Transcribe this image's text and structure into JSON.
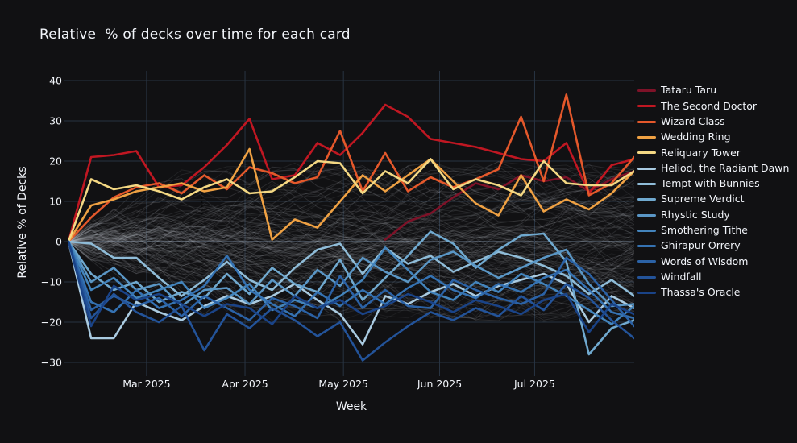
{
  "title": "Relative  % of decks over time for each card",
  "colors": {
    "paper_bg": "#111113",
    "plot_bg": "#111113",
    "grid": "#283442",
    "zero_line": "#4a5563",
    "axis_text": "#f2f5fa",
    "background_lines": "#b8bdc4"
  },
  "chart_data": {
    "type": "line",
    "title": "Relative  % of decks over time for each card",
    "xlabel": "Week",
    "ylabel": "Relative % of Decks",
    "x_is_weekly_index": true,
    "n_weeks": 26,
    "x_ticks": [
      {
        "label": "Mar 2025",
        "week": 3.45
      },
      {
        "label": "Apr 2025",
        "week": 7.8
      },
      {
        "label": "May 2025",
        "week": 12.15
      },
      {
        "label": "Jun 2025",
        "week": 16.4
      },
      {
        "label": "Jul 2025",
        "week": 20.6
      }
    ],
    "y_ticks": [
      40,
      30,
      20,
      10,
      0,
      -10,
      -20,
      -30
    ],
    "ylim": [
      -32.4,
      42.4
    ],
    "grid": true,
    "legend_position": "right",
    "series": [
      {
        "name": "Tataru Taru",
        "color": "#7e1228",
        "values": [
          null,
          null,
          null,
          null,
          null,
          null,
          null,
          null,
          null,
          null,
          null,
          null,
          null,
          null,
          0.5,
          5,
          7,
          11,
          14.5,
          13,
          16.5,
          15,
          16,
          12.5,
          15.5,
          17.5
        ]
      },
      {
        "name": "The Second Doctor",
        "color": "#c01722",
        "values": [
          0,
          21,
          21.5,
          22.5,
          13.5,
          14,
          18.5,
          24,
          30.5,
          15.5,
          16.5,
          24.5,
          21.5,
          27,
          34,
          31,
          25.5,
          24.5,
          23.5,
          22,
          20.5,
          20,
          24.5,
          12,
          19,
          20.5
        ]
      },
      {
        "name": "Wizard Class",
        "color": "#e4582b",
        "values": [
          0,
          6,
          11,
          13.5,
          14.5,
          12,
          16.5,
          13,
          18.5,
          17,
          14.5,
          16,
          27.5,
          12.5,
          22,
          12.5,
          16,
          13.5,
          15.5,
          18,
          31,
          15,
          36.5,
          11.5,
          14.5,
          21
        ]
      },
      {
        "name": "Wedding Ring",
        "color": "#efa143",
        "values": [
          0,
          9,
          10.5,
          12.5,
          13.5,
          14.5,
          12.5,
          13.5,
          23,
          0.5,
          5.5,
          3.5,
          10,
          16.5,
          12.5,
          16.5,
          20.5,
          15,
          9.5,
          6.5,
          16.5,
          7.5,
          10.5,
          8,
          12,
          17.5
        ]
      },
      {
        "name": "Reliquary Tower",
        "color": "#f4d883",
        "values": [
          0,
          15.5,
          13,
          14,
          12.5,
          10.5,
          13.5,
          15.5,
          12,
          12.5,
          16,
          20,
          19.5,
          12,
          17.5,
          14.5,
          20.5,
          13,
          15.5,
          14,
          11.5,
          20,
          14.5,
          14,
          14,
          17.5
        ]
      },
      {
        "name": "Heliod, the Radiant Dawn",
        "color": "#aacbe1",
        "values": [
          0,
          -24,
          -24,
          -15,
          -17.5,
          -19.5,
          -16,
          -13.5,
          -15.5,
          -13.5,
          -10.5,
          -14.5,
          -18,
          -25.5,
          -13.5,
          -15.5,
          -12.5,
          -10.5,
          -13.5,
          -11,
          -9.5,
          -8,
          -10.5,
          -20,
          -13.5,
          -16.5
        ]
      },
      {
        "name": "Tempt with Bunnies",
        "color": "#8fbcd8",
        "values": [
          0,
          -0.5,
          -4,
          -4,
          -9,
          -13.5,
          -9.5,
          -5,
          -9.5,
          -12,
          -6.5,
          -2,
          -0.5,
          -8,
          -1.5,
          -5.5,
          -3.5,
          -7.5,
          -5,
          -2.5,
          -4,
          -6,
          -8.5,
          -13,
          -9.5,
          -13.5
        ]
      },
      {
        "name": "Supreme Verdict",
        "color": "#70a9cf",
        "values": [
          0,
          -8,
          -12,
          -10,
          -15,
          -12.5,
          -14,
          -8,
          -13,
          -6.5,
          -10.5,
          -12.5,
          -4.5,
          -14.5,
          -9,
          -3.5,
          2.5,
          -0.5,
          -6.5,
          -2,
          1.5,
          2,
          -5,
          -28,
          -21.5,
          -19.5
        ]
      },
      {
        "name": "Rhystic Study",
        "color": "#5a96c5",
        "values": [
          0,
          -10,
          -6.5,
          -12,
          -10.5,
          -16,
          -12,
          -11.5,
          -15.5,
          -9.5,
          -13.5,
          -7,
          -11,
          -4,
          -7.5,
          -10,
          -4.5,
          -2.5,
          -6,
          -9,
          -6.5,
          -4,
          -2,
          -10.5,
          -16,
          -15.5
        ]
      },
      {
        "name": "Smothering Tithe",
        "color": "#4384bc",
        "values": [
          0,
          -12,
          -9,
          -14,
          -12,
          -10,
          -16.5,
          -14,
          -10.5,
          -17,
          -14.5,
          -16.5,
          -13.5,
          -9.5,
          -1.5,
          -7,
          -12.5,
          -14.5,
          -10,
          -12.5,
          -8,
          -10.5,
          -13.5,
          -17,
          -20.5,
          -16
        ]
      },
      {
        "name": "Ghirapur Orrery",
        "color": "#3572b2",
        "values": [
          0,
          -15,
          -17.5,
          -12,
          -16.5,
          -14.5,
          -11,
          -3.5,
          -12,
          -15.5,
          -18.5,
          -12.5,
          -16,
          -12,
          -15.5,
          -11.5,
          -8.5,
          -12,
          -14,
          -10.5,
          -12.5,
          -9,
          -7,
          -12,
          -17.5,
          -19
        ]
      },
      {
        "name": "Words of Wisdom",
        "color": "#2b62a6",
        "values": [
          0,
          -17,
          -13.5,
          -16,
          -14,
          -18.5,
          -13.5,
          -16.5,
          -19.5,
          -14,
          -16,
          -19,
          -8.5,
          -16.5,
          -12,
          -16,
          -16.5,
          -9.5,
          -12,
          -14,
          -15.5,
          -13,
          -4,
          -8,
          -14.5,
          -21
        ]
      },
      {
        "name": "Windfall",
        "color": "#235399",
        "values": [
          0,
          -19,
          -13,
          -17.5,
          -20,
          -16,
          -27,
          -18,
          -21.5,
          -16.5,
          -19.5,
          -23.5,
          -20,
          -29.5,
          -25,
          -21,
          -17.5,
          -19.5,
          -16.5,
          -18.5,
          -13.5,
          -17,
          -10.5,
          -14,
          -19.5,
          -24
        ]
      },
      {
        "name": "Thassa's Oracle",
        "color": "#1a4387",
        "values": [
          0,
          -21,
          -11,
          -14.5,
          -13,
          -15.5,
          -18.5,
          -15.5,
          -16.5,
          -20.5,
          -13.5,
          -16.5,
          -14.5,
          -18,
          -16,
          -13,
          -15,
          -17.5,
          -14.5,
          -16,
          -18,
          -14.5,
          -13,
          -22.5,
          -15.5,
          -18
        ]
      }
    ],
    "background_other_cards": {
      "description": "dense band of semi-transparent gray lines for all non-highlighted cards, starting at 0 and wandering roughly between -22 and +25",
      "count": 115,
      "color": "#b8bdc4",
      "opacity_range": [
        0.07,
        0.18
      ]
    }
  }
}
